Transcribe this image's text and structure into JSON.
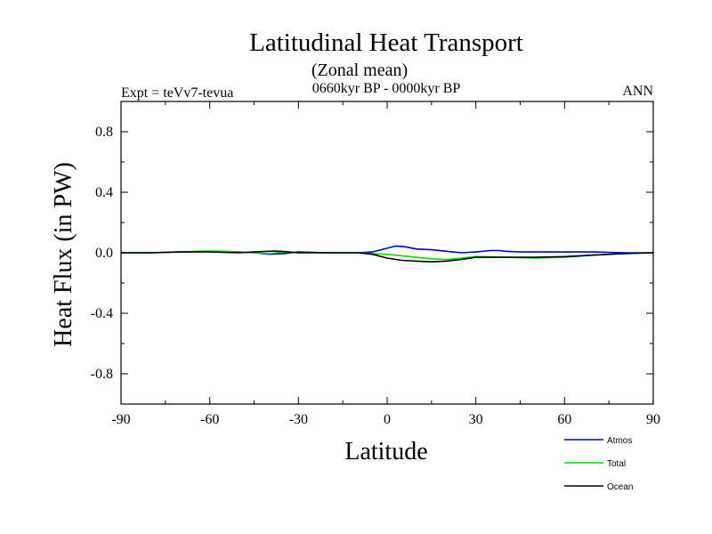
{
  "chart_data": {
    "type": "line",
    "title": "Latitudinal Heat Transport",
    "subtitle": "(Zonal mean)",
    "period": "0660kyr BP - 0000kyr BP",
    "left_note": "Expt = teVv7-tevua",
    "right_note": "ANN",
    "xlabel": "Latitude",
    "ylabel": "Heat Flux (in PW)",
    "xlim": [
      -90,
      90
    ],
    "ylim": [
      -1.0,
      1.0
    ],
    "xticks": [
      -90,
      -60,
      -30,
      0,
      30,
      60,
      90
    ],
    "xtick_labels": [
      "-90",
      "-60",
      "-30",
      "0",
      "30",
      "60",
      "90"
    ],
    "yticks": [
      -0.8,
      -0.4,
      0.0,
      0.4,
      0.8
    ],
    "ytick_labels": [
      "-0.8",
      "-0.4",
      "0.0",
      "0.4",
      "0.8"
    ],
    "grid": false,
    "legend_position": "bottom-right",
    "series": [
      {
        "name": "Atmos",
        "color": "#0000cc",
        "x": [
          -90,
          -80,
          -70,
          -60,
          -50,
          -45,
          -40,
          -35,
          -30,
          -20,
          -10,
          -5,
          0,
          3,
          6,
          10,
          15,
          20,
          25,
          30,
          35,
          38,
          40,
          45,
          50,
          60,
          70,
          80,
          90
        ],
        "y": [
          0.0,
          0.0,
          0.005,
          0.01,
          0.005,
          0.0,
          -0.01,
          -0.005,
          0.005,
          0.0,
          0.0,
          0.005,
          0.03,
          0.045,
          0.04,
          0.025,
          0.02,
          0.01,
          0.0,
          0.005,
          0.015,
          0.015,
          0.01,
          0.005,
          0.005,
          0.005,
          0.005,
          0.0,
          0.0
        ]
      },
      {
        "name": "Total",
        "color": "#00dd00",
        "x": [
          -90,
          -80,
          -70,
          -60,
          -55,
          -50,
          -45,
          -40,
          -35,
          -30,
          -20,
          -10,
          -5,
          0,
          5,
          10,
          15,
          20,
          25,
          30,
          40,
          50,
          60,
          70,
          80,
          90
        ],
        "y": [
          0.0,
          0.0,
          0.005,
          0.012,
          0.01,
          0.005,
          0.0,
          -0.005,
          0.005,
          0.0,
          0.0,
          0.0,
          -0.005,
          -0.01,
          -0.02,
          -0.03,
          -0.04,
          -0.045,
          -0.035,
          -0.025,
          -0.03,
          -0.035,
          -0.03,
          -0.015,
          -0.005,
          0.0
        ]
      },
      {
        "name": "Ocean",
        "color": "#000000",
        "x": [
          -90,
          -80,
          -70,
          -60,
          -50,
          -45,
          -40,
          -38,
          -35,
          -30,
          -20,
          -10,
          -5,
          0,
          5,
          10,
          15,
          20,
          25,
          30,
          40,
          50,
          60,
          70,
          80,
          90
        ],
        "y": [
          0.0,
          0.0,
          0.005,
          0.005,
          0.0,
          0.005,
          0.01,
          0.012,
          0.008,
          0.0,
          0.0,
          0.0,
          -0.01,
          -0.035,
          -0.05,
          -0.055,
          -0.06,
          -0.055,
          -0.045,
          -0.03,
          -0.03,
          -0.03,
          -0.025,
          -0.015,
          -0.005,
          0.0
        ]
      }
    ]
  }
}
